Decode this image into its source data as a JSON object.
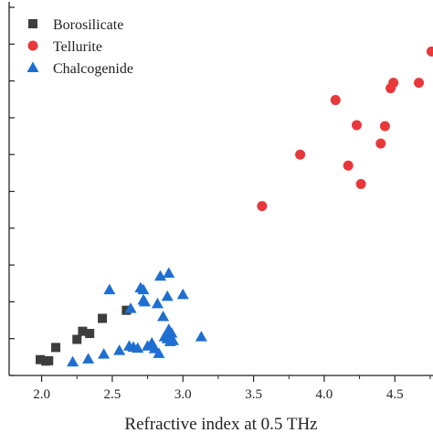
{
  "chart_data": {
    "type": "scatter",
    "title": "",
    "xlabel": "Refractive index at 0.5 THz",
    "ylabel": "",
    "xlim": [
      1.77,
      4.77
    ],
    "ylim": [
      0,
      10
    ],
    "xticks": [
      2.0,
      2.5,
      3.0,
      3.5,
      4.0,
      4.5
    ],
    "xtick_labels": [
      "2.0",
      "2.5",
      "3.0",
      "3.5",
      "4.0",
      "4.5"
    ],
    "yticks": [
      0,
      1,
      2,
      3,
      4,
      5,
      6,
      7,
      8,
      9,
      10
    ],
    "grid": false,
    "legend_position": "top-left",
    "series": [
      {
        "name": "Borosilicate",
        "marker": "square",
        "color": "#3d3d3d",
        "points": [
          [
            1.99,
            0.43
          ],
          [
            2.03,
            0.39
          ],
          [
            2.05,
            0.4
          ],
          [
            2.1,
            0.76
          ],
          [
            2.25,
            0.98
          ],
          [
            2.29,
            1.2
          ],
          [
            2.34,
            1.14
          ],
          [
            2.43,
            1.55
          ],
          [
            2.6,
            1.77
          ]
        ]
      },
      {
        "name": "Tellurite",
        "marker": "circle",
        "color": "#e8383b",
        "points": [
          [
            3.56,
            4.6
          ],
          [
            3.83,
            6.0
          ],
          [
            4.08,
            7.48
          ],
          [
            4.17,
            5.7
          ],
          [
            4.23,
            6.8
          ],
          [
            4.26,
            5.2
          ],
          [
            4.4,
            6.3
          ],
          [
            4.43,
            6.77
          ],
          [
            4.47,
            7.8
          ],
          [
            4.49,
            7.95
          ],
          [
            4.67,
            7.95
          ],
          [
            4.76,
            8.8
          ]
        ]
      },
      {
        "name": "Chalcogenide",
        "marker": "triangle",
        "color": "#1f6fd1",
        "points": [
          [
            2.22,
            0.37
          ],
          [
            2.33,
            0.45
          ],
          [
            2.44,
            0.58
          ],
          [
            2.48,
            2.33
          ],
          [
            2.55,
            0.68
          ],
          [
            2.62,
            0.8
          ],
          [
            2.63,
            1.82
          ],
          [
            2.65,
            0.77
          ],
          [
            2.68,
            0.74
          ],
          [
            2.7,
            2.38
          ],
          [
            2.72,
            2.33
          ],
          [
            2.72,
            2.05
          ],
          [
            2.73,
            2.0
          ],
          [
            2.75,
            0.8
          ],
          [
            2.78,
            0.88
          ],
          [
            2.8,
            0.73
          ],
          [
            2.82,
            1.95
          ],
          [
            2.83,
            0.6
          ],
          [
            2.84,
            2.7
          ],
          [
            2.86,
            1.6
          ],
          [
            2.87,
            1.05
          ],
          [
            2.89,
            1.0
          ],
          [
            2.89,
            2.15
          ],
          [
            2.9,
            2.78
          ],
          [
            2.9,
            1.25
          ],
          [
            2.91,
            0.92
          ],
          [
            2.92,
            1.15
          ],
          [
            2.93,
            0.95
          ],
          [
            3.0,
            2.2
          ],
          [
            3.13,
            1.05
          ]
        ]
      }
    ]
  }
}
